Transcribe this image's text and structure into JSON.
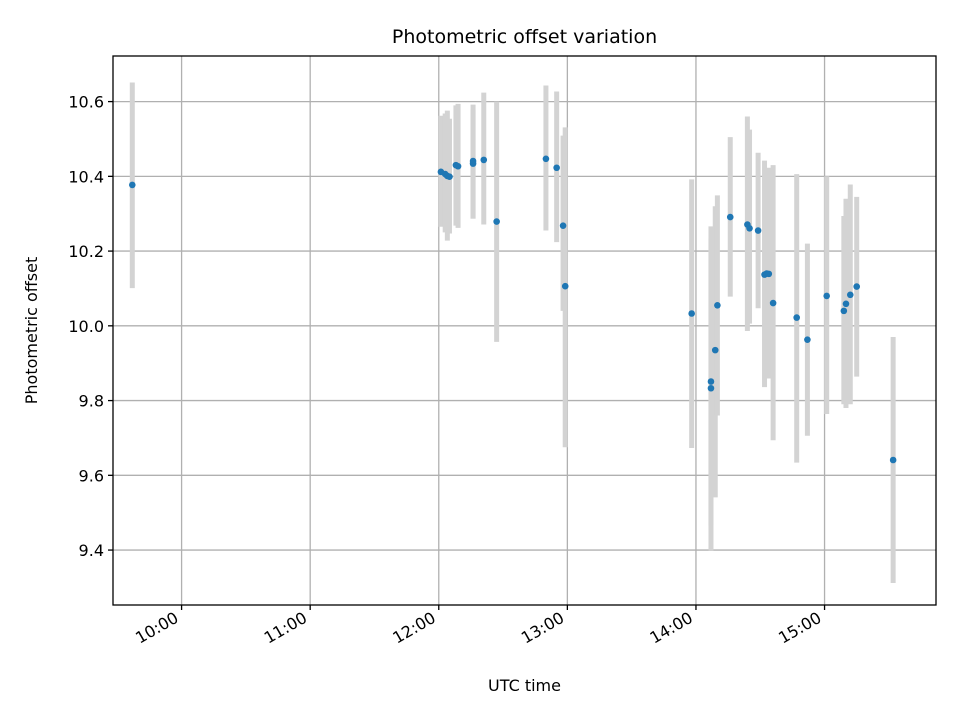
{
  "chart_data": {
    "type": "scatter",
    "title": "Photometric offset variation",
    "xlabel": "UTC time",
    "ylabel": "Photometric offset",
    "xlim": [
      "09:28",
      "15:52"
    ],
    "ylim": [
      9.253,
      10.722
    ],
    "x_ticks": [
      "10:00",
      "11:00",
      "12:00",
      "13:00",
      "14:00",
      "15:00"
    ],
    "y_ticks": [
      "9.4",
      "9.6",
      "9.8",
      "10.0",
      "10.2",
      "10.4",
      "10.6"
    ],
    "grid": true,
    "legend": "none",
    "colors": {
      "point": "#1f77b4",
      "errorbar": "#d3d3d3",
      "grid": "#b0b0b0"
    },
    "points": [
      {
        "x": "09:37",
        "y": 10.377,
        "ylo": 10.101,
        "yhi": 10.651
      },
      {
        "x": "12:01",
        "y": 10.412,
        "ylo": 10.265,
        "yhi": 10.562
      },
      {
        "x": "12:03",
        "y": 10.406,
        "ylo": 10.25,
        "yhi": 10.568
      },
      {
        "x": "12:04",
        "y": 10.401,
        "ylo": 10.228,
        "yhi": 10.576
      },
      {
        "x": "12:05",
        "y": 10.399,
        "ylo": 10.247,
        "yhi": 10.554
      },
      {
        "x": "12:08",
        "y": 10.43,
        "ylo": 10.268,
        "yhi": 10.59
      },
      {
        "x": "12:09",
        "y": 10.427,
        "ylo": 10.262,
        "yhi": 10.594
      },
      {
        "x": "12:16",
        "y": 10.441,
        "ylo": 10.287,
        "yhi": 10.592
      },
      {
        "x": "12:16",
        "y": 10.434,
        "ylo": 10.287,
        "yhi": 10.578
      },
      {
        "x": "12:21",
        "y": 10.444,
        "ylo": 10.271,
        "yhi": 10.624
      },
      {
        "x": "12:27",
        "y": 10.279,
        "ylo": 9.957,
        "yhi": 10.6
      },
      {
        "x": "12:50",
        "y": 10.447,
        "ylo": 10.255,
        "yhi": 10.643
      },
      {
        "x": "12:55",
        "y": 10.423,
        "ylo": 10.224,
        "yhi": 10.627
      },
      {
        "x": "12:58",
        "y": 10.268,
        "ylo": 10.04,
        "yhi": 10.509
      },
      {
        "x": "12:59",
        "y": 10.106,
        "ylo": 9.675,
        "yhi": 10.531
      },
      {
        "x": "13:58",
        "y": 10.033,
        "ylo": 9.673,
        "yhi": 10.392
      },
      {
        "x": "14:07",
        "y": 9.851,
        "ylo": 9.466,
        "yhi": 10.233
      },
      {
        "x": "14:07",
        "y": 9.833,
        "ylo": 9.399,
        "yhi": 10.266
      },
      {
        "x": "14:09",
        "y": 9.935,
        "ylo": 9.541,
        "yhi": 10.32
      },
      {
        "x": "14:10",
        "y": 10.055,
        "ylo": 9.76,
        "yhi": 10.349
      },
      {
        "x": "14:16",
        "y": 10.291,
        "ylo": 10.078,
        "yhi": 10.505
      },
      {
        "x": "14:24",
        "y": 10.271,
        "ylo": 9.986,
        "yhi": 10.56
      },
      {
        "x": "14:25",
        "y": 10.261,
        "ylo": 10.006,
        "yhi": 10.525
      },
      {
        "x": "14:29",
        "y": 10.255,
        "ylo": 10.047,
        "yhi": 10.463
      },
      {
        "x": "14:32",
        "y": 10.137,
        "ylo": 9.836,
        "yhi": 10.442
      },
      {
        "x": "14:33",
        "y": 10.14,
        "ylo": 9.908,
        "yhi": 10.372
      },
      {
        "x": "14:34",
        "y": 10.139,
        "ylo": 9.859,
        "yhi": 10.423
      },
      {
        "x": "14:36",
        "y": 10.061,
        "ylo": 9.694,
        "yhi": 10.43
      },
      {
        "x": "14:47",
        "y": 10.022,
        "ylo": 9.634,
        "yhi": 10.406
      },
      {
        "x": "14:52",
        "y": 9.963,
        "ylo": 9.706,
        "yhi": 10.22
      },
      {
        "x": "15:01",
        "y": 10.08,
        "ylo": 9.764,
        "yhi": 10.4
      },
      {
        "x": "15:09",
        "y": 10.04,
        "ylo": 9.79,
        "yhi": 10.294
      },
      {
        "x": "15:10",
        "y": 10.059,
        "ylo": 9.78,
        "yhi": 10.34
      },
      {
        "x": "15:12",
        "y": 10.083,
        "ylo": 9.79,
        "yhi": 10.378
      },
      {
        "x": "15:15",
        "y": 10.105,
        "ylo": 9.864,
        "yhi": 10.345
      },
      {
        "x": "15:32",
        "y": 9.641,
        "ylo": 9.312,
        "yhi": 9.97
      }
    ]
  }
}
